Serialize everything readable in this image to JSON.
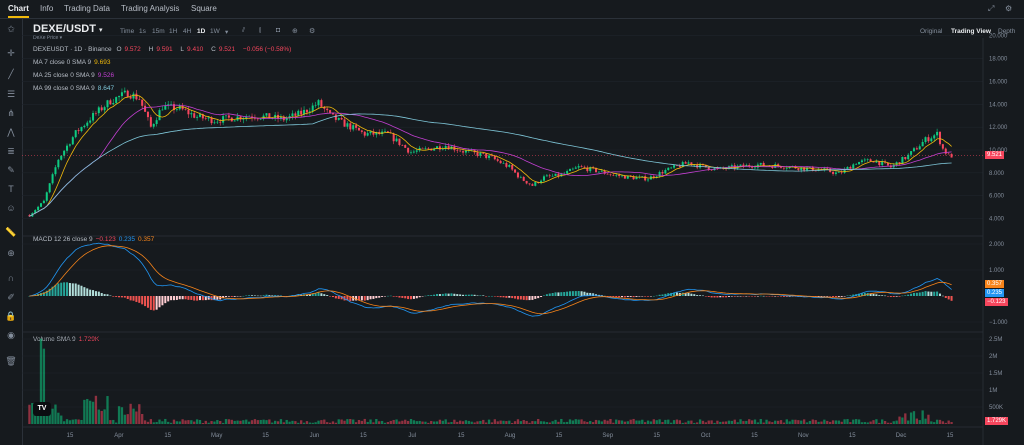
{
  "nav": {
    "tabs": [
      "Chart",
      "Info",
      "Trading Data",
      "Trading Analysis",
      "Square"
    ],
    "active": "Chart"
  },
  "header": {
    "pair": "DEXE/USDT",
    "pair_arrow": "▾",
    "subtitle": "DeXe Price ▾",
    "timeframes": [
      "Time",
      "1s",
      "15m",
      "1H",
      "4H",
      "1D",
      "1W",
      "▾"
    ],
    "active_timeframe": "1D",
    "views": [
      "Original",
      "Trading View",
      "Depth"
    ],
    "active_view": "Trading View"
  },
  "chart_data": {
    "type": "line",
    "symbol_line": {
      "name": "DEXEUSDT · 1D · Binance",
      "o_label": "O",
      "o": "9.572",
      "h_label": "H",
      "h": "9.591",
      "l_label": "L",
      "l": "9.410",
      "c_label": "C",
      "c": "9.521",
      "change": "−0.056 (−0.58%)"
    },
    "ma_legends": [
      {
        "label": "MA 7 close 0 SMA 9",
        "value": "9.693",
        "color": "#f0b90b"
      },
      {
        "label": "MA 25 close 0 SMA 9",
        "value": "9.526",
        "color": "#c23fd1"
      },
      {
        "label": "MA 99 close 0 SMA 9",
        "value": "8.647",
        "color": "#7fc7d9"
      }
    ],
    "price_axis": [
      "20.000",
      "18.000",
      "16.000",
      "14.000",
      "12.000",
      "10.000",
      "8.000",
      "6.000",
      "4.000"
    ],
    "price_ylim": [
      3,
      20.5
    ],
    "last_price": "9.521",
    "x_ticks": [
      "15",
      "Apr",
      "15",
      "May",
      "15",
      "Jun",
      "15",
      "Jul",
      "15",
      "Aug",
      "15",
      "Sep",
      "15",
      "Oct",
      "15",
      "Nov",
      "15",
      "Dec",
      "15"
    ],
    "close_anchors": [
      [
        0,
        4.3
      ],
      [
        5,
        5.5
      ],
      [
        10,
        9.2
      ],
      [
        16,
        11.5
      ],
      [
        22,
        13.0
      ],
      [
        28,
        14.3
      ],
      [
        34,
        15.0
      ],
      [
        38,
        14.5
      ],
      [
        42,
        12.0
      ],
      [
        46,
        13.8
      ],
      [
        52,
        13.6
      ],
      [
        58,
        12.9
      ],
      [
        64,
        12.6
      ],
      [
        70,
        12.8
      ],
      [
        76,
        13.0
      ],
      [
        82,
        12.9
      ],
      [
        88,
        12.7
      ],
      [
        94,
        13.2
      ],
      [
        100,
        14.1
      ],
      [
        104,
        13.0
      ],
      [
        108,
        12.4
      ],
      [
        116,
        11.4
      ],
      [
        124,
        11.4
      ],
      [
        132,
        9.8
      ],
      [
        138,
        10.1
      ],
      [
        144,
        10.4
      ],
      [
        150,
        9.9
      ],
      [
        156,
        9.6
      ],
      [
        160,
        9.3
      ],
      [
        166,
        8.5
      ],
      [
        170,
        7.5
      ],
      [
        174,
        6.9
      ],
      [
        178,
        7.6
      ],
      [
        184,
        7.8
      ],
      [
        190,
        8.5
      ],
      [
        196,
        8.2
      ],
      [
        202,
        7.8
      ],
      [
        208,
        7.6
      ],
      [
        214,
        7.5
      ],
      [
        220,
        8.2
      ],
      [
        228,
        8.9
      ],
      [
        232,
        8.6
      ],
      [
        238,
        8.3
      ],
      [
        244,
        8.5
      ],
      [
        252,
        8.7
      ],
      [
        260,
        8.6
      ],
      [
        268,
        8.4
      ],
      [
        276,
        8.2
      ],
      [
        280,
        7.9
      ],
      [
        286,
        8.9
      ],
      [
        292,
        9.1
      ],
      [
        298,
        8.5
      ],
      [
        304,
        9.5
      ],
      [
        310,
        10.9
      ],
      [
        314,
        11.4
      ],
      [
        316,
        10.1
      ],
      [
        318,
        9.5
      ]
    ],
    "macd_legend": {
      "label": "MACD 12 26 close 9",
      "hist": "−0.123",
      "macd": "0.235",
      "signal": "0.357"
    },
    "macd_axis": [
      "2.000",
      "1.000",
      "−1.000"
    ],
    "macd_tags": [
      "0.357",
      "0.235",
      "−0.123"
    ],
    "volume_legend": {
      "label": "Volume SMA 9",
      "value": "1.729K"
    },
    "volume_axis": [
      "2.5M",
      "2M",
      "1.5M",
      "1M",
      "500K"
    ],
    "volume_tag": "1.729K",
    "colors": {
      "up": "#0ecb81",
      "down": "#f6465d",
      "ma7": "#f0b90b",
      "ma25": "#c23fd1",
      "ma99": "#7fc7d9",
      "macd": "#2196f3",
      "signal": "#f7841a"
    }
  }
}
